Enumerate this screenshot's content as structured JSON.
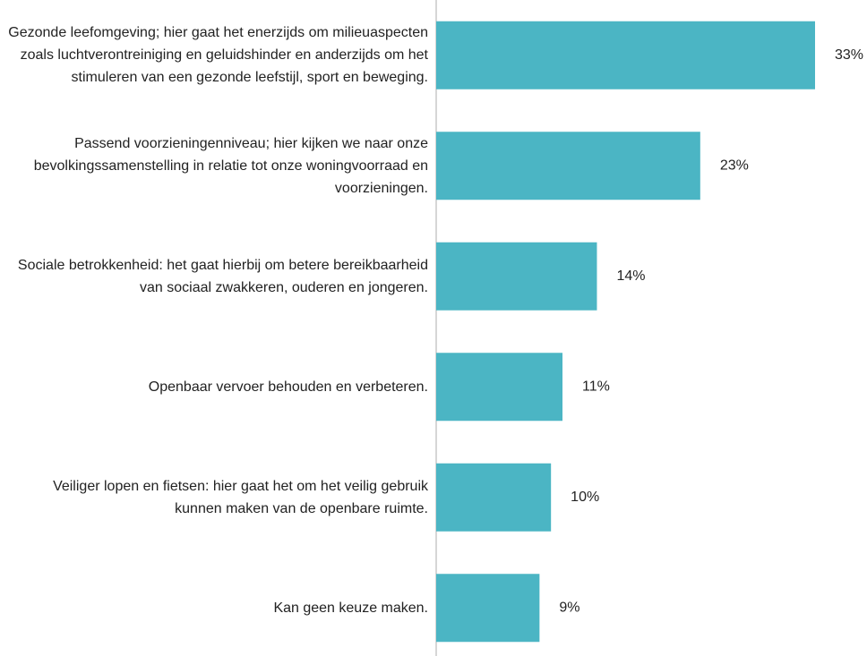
{
  "chart_data": {
    "type": "barh",
    "categories": [
      "Gezonde leefomgeving; hier gaat het enerzijds om milieuaspecten zoals luchtverontreiniging  en geluidshinder en anderzijds om het stimuleren van een gezonde leefstijl, sport en beweging.",
      "Passend voorzieningenniveau; hier kijken we naar onze bevolkingssamenstelling in relatie tot onze woningvoorraad en voorzieningen.",
      "Sociale betrokkenheid: het gaat hierbij om betere bereikbaarheid van sociaal zwakkeren, ouderen en jongeren.",
      "Openbaar vervoer behouden en verbeteren.",
      "Veiliger lopen en fietsen: hier gaat het om het veilig gebruik kunnen maken van de openbare ruimte.",
      "Kan geen keuze maken."
    ],
    "values": [
      33,
      23,
      14,
      11,
      10,
      9
    ],
    "value_labels": [
      "33%",
      "23%",
      "14%",
      "11%",
      "10%",
      "9%"
    ],
    "color": "#4bb5c4"
  }
}
